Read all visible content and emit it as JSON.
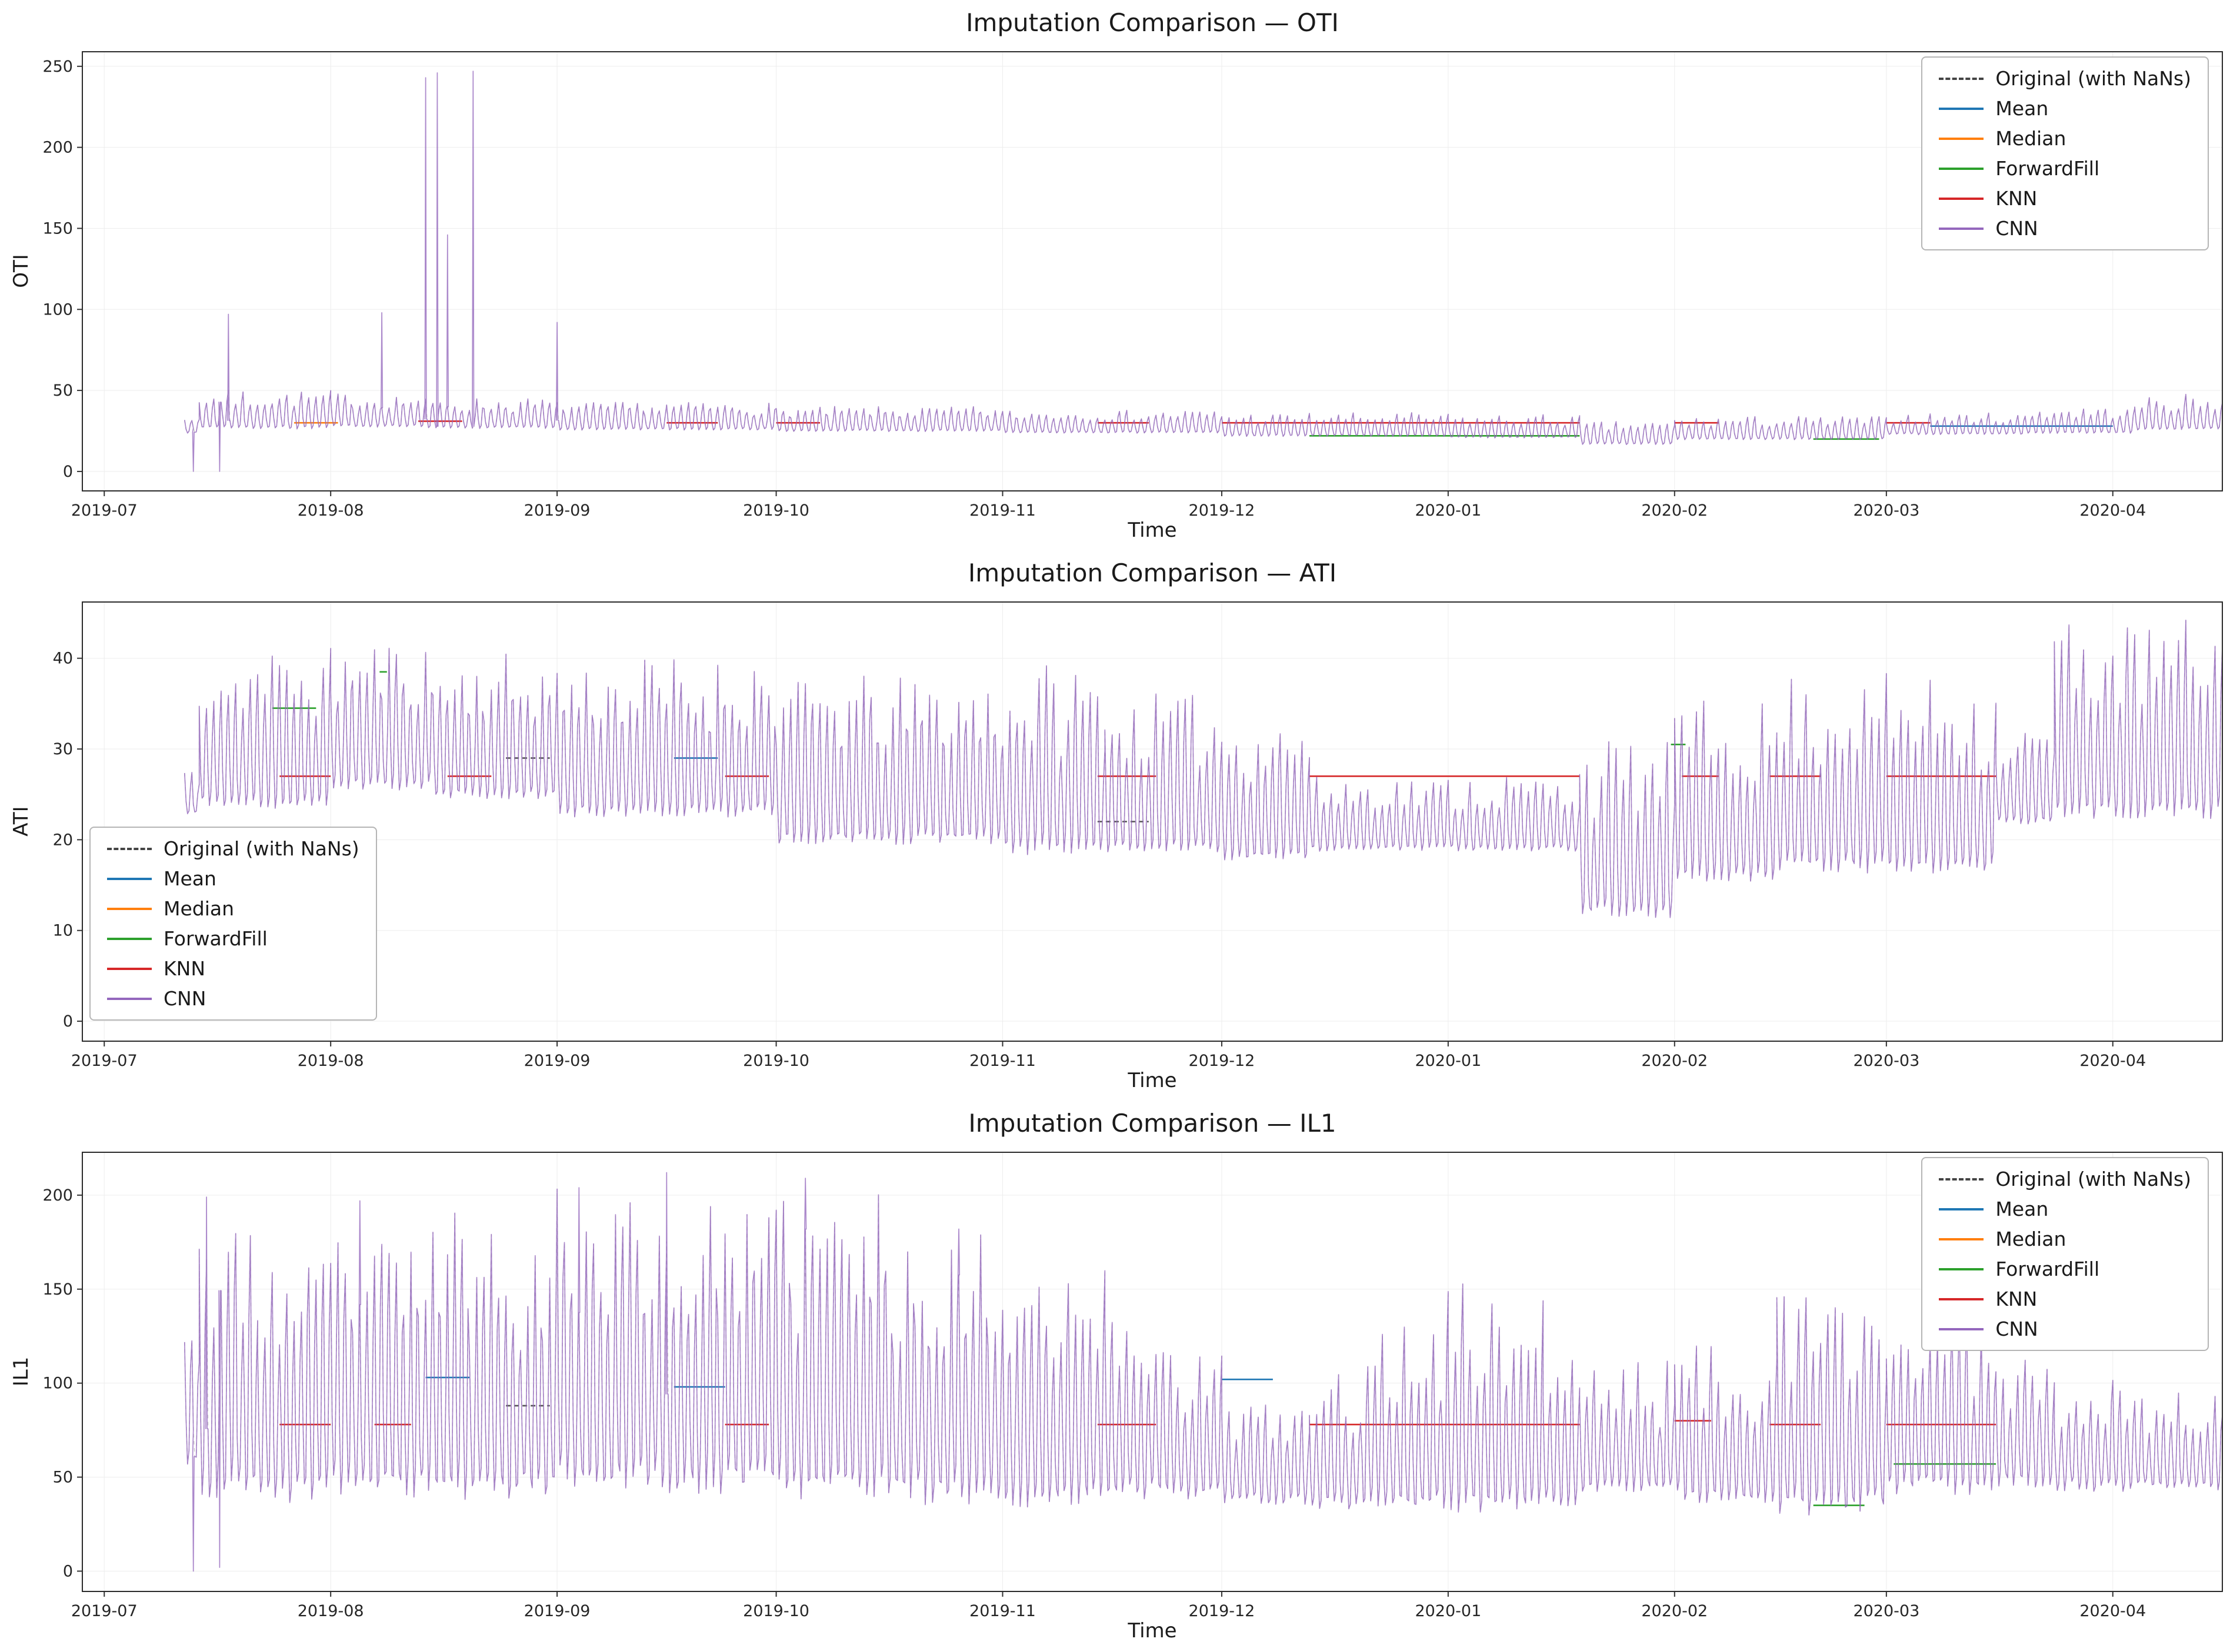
{
  "figure": {
    "background": "#ffffff",
    "x_domain_days": 293,
    "x_axis_label": "Time",
    "x_ticks": [
      {
        "label": "2019-07",
        "day": 3
      },
      {
        "label": "2019-08",
        "day": 34
      },
      {
        "label": "2019-09",
        "day": 65
      },
      {
        "label": "2019-10",
        "day": 95
      },
      {
        "label": "2019-11",
        "day": 126
      },
      {
        "label": "2019-12",
        "day": 156
      },
      {
        "label": "2020-01",
        "day": 187
      },
      {
        "label": "2020-02",
        "day": 218
      },
      {
        "label": "2020-03",
        "day": 247
      },
      {
        "label": "2020-04",
        "day": 278
      }
    ]
  },
  "legend": {
    "items": [
      {
        "key": "original",
        "label": "Original (with NaNs)",
        "color": "#444444",
        "dash": true
      },
      {
        "key": "mean",
        "label": "Mean",
        "color": "#1f77b4"
      },
      {
        "key": "median",
        "label": "Median",
        "color": "#ff7f0e"
      },
      {
        "key": "ffill",
        "label": "ForwardFill",
        "color": "#2ca02c"
      },
      {
        "key": "knn",
        "label": "KNN",
        "color": "#d62728"
      },
      {
        "key": "cnn",
        "label": "CNN",
        "color": "#9467bd"
      }
    ]
  },
  "chart_data": [
    {
      "type": "line",
      "title": "Imputation Comparison — OTI",
      "ylabel": "OTI",
      "xlabel": "Time",
      "ylim": [
        -12,
        259
      ],
      "yticks": [
        0,
        50,
        100,
        150,
        200,
        250
      ],
      "x_tick_labels": [
        "2019-07",
        "2019-08",
        "2019-09",
        "2019-10",
        "2019-11",
        "2019-12",
        "2020-01",
        "2020-02",
        "2020-03",
        "2020-04"
      ],
      "legend_loc": "upper right",
      "series_names": [
        "Original (with NaNs)",
        "Mean",
        "Median",
        "ForwardFill",
        "KNN",
        "CNN"
      ],
      "seed": 7,
      "noise": 0.06,
      "cnn_envelope": [
        [
          14,
          16,
          24,
          36
        ],
        [
          16,
          34,
          27,
          50
        ],
        [
          34,
          47,
          28,
          48
        ],
        [
          47,
          65,
          27,
          45
        ],
        [
          65,
          95,
          26,
          43
        ],
        [
          95,
          126,
          25,
          40
        ],
        [
          126,
          156,
          24,
          38
        ],
        [
          156,
          187,
          22,
          36
        ],
        [
          187,
          205,
          21,
          35
        ],
        [
          205,
          218,
          17,
          31
        ],
        [
          218,
          247,
          20,
          34
        ],
        [
          247,
          266,
          23,
          36
        ],
        [
          266,
          281,
          24,
          40
        ],
        [
          281,
          293,
          26,
          47
        ]
      ],
      "spikes_up": [
        [
          20,
          97
        ],
        [
          41,
          98
        ],
        [
          47,
          243
        ],
        [
          48.6,
          246
        ],
        [
          50,
          146
        ],
        [
          53.5,
          247
        ],
        [
          65,
          92
        ]
      ],
      "spikes_down": [
        [
          15.2,
          0
        ],
        [
          18.8,
          0
        ]
      ],
      "flat_segments": {
        "median": [
          [
            29,
            35,
            30
          ]
        ],
        "knn": [
          [
            46,
            52,
            31
          ],
          [
            80,
            87,
            30
          ],
          [
            95,
            101,
            30
          ],
          [
            139,
            146,
            30
          ],
          [
            156,
            205,
            30
          ],
          [
            218,
            224,
            30
          ],
          [
            247,
            253,
            30
          ]
        ],
        "ffill": [
          [
            168,
            205,
            22
          ],
          [
            237,
            246,
            20
          ]
        ],
        "mean": [
          [
            253,
            278,
            28
          ]
        ]
      }
    },
    {
      "type": "line",
      "title": "Imputation Comparison — ATI",
      "ylabel": "ATI",
      "xlabel": "Time",
      "ylim": [
        -2.2,
        46.2
      ],
      "yticks": [
        0,
        10,
        20,
        30,
        40
      ],
      "x_tick_labels": [
        "2019-07",
        "2019-08",
        "2019-09",
        "2019-10",
        "2019-11",
        "2019-12",
        "2020-01",
        "2020-02",
        "2020-03",
        "2020-04"
      ],
      "legend_loc": "lower left",
      "series_names": [
        "Original (with NaNs)",
        "Mean",
        "Median",
        "ForwardFill",
        "KNN",
        "CNN"
      ],
      "seed": 11,
      "noise": 0.07,
      "cnn_envelope": [
        [
          14,
          16,
          23,
          28
        ],
        [
          16,
          34,
          24,
          41
        ],
        [
          34,
          48,
          26,
          42
        ],
        [
          48,
          65,
          25,
          40
        ],
        [
          65,
          95,
          23,
          40
        ],
        [
          95,
          126,
          20,
          38
        ],
        [
          126,
          140,
          19,
          39
        ],
        [
          140,
          156,
          19,
          36
        ],
        [
          156,
          168,
          18,
          34
        ],
        [
          168,
          205,
          19,
          27
        ],
        [
          205,
          218,
          12,
          31
        ],
        [
          218,
          232,
          16,
          35
        ],
        [
          232,
          262,
          17,
          38
        ],
        [
          262,
          270,
          22,
          33
        ],
        [
          270,
          293,
          23,
          44
        ]
      ],
      "spikes_up": [],
      "spikes_down": [],
      "flat_segments": {
        "ffill": [
          [
            26,
            32,
            34.5
          ],
          [
            40.7,
            41.7,
            38.5
          ],
          [
            217.5,
            219.5,
            30.5
          ]
        ],
        "knn": [
          [
            27,
            34,
            27
          ],
          [
            50,
            56,
            27
          ],
          [
            88,
            94,
            27
          ],
          [
            139,
            147,
            27
          ],
          [
            168,
            205,
            27
          ],
          [
            219,
            224,
            27
          ],
          [
            231,
            238,
            27
          ],
          [
            247,
            262,
            27
          ]
        ],
        "mean": [
          [
            81,
            87,
            29
          ]
        ],
        "original": [
          [
            58,
            64,
            29
          ],
          [
            139,
            146,
            22
          ]
        ]
      }
    },
    {
      "type": "line",
      "title": "Imputation Comparison — IL1",
      "ylabel": "IL1",
      "xlabel": "Time",
      "ylim": [
        -10.8,
        222.8
      ],
      "yticks": [
        0,
        50,
        100,
        150,
        200
      ],
      "x_tick_labels": [
        "2019-07",
        "2019-08",
        "2019-09",
        "2019-10",
        "2019-11",
        "2019-12",
        "2020-01",
        "2020-02",
        "2020-03",
        "2020-04"
      ],
      "legend_loc": "upper right",
      "series_names": [
        "Original (with NaNs)",
        "Mean",
        "Median",
        "ForwardFill",
        "KNN",
        "CNN"
      ],
      "seed": 23,
      "noise": 0.1,
      "cnn_envelope": [
        [
          14,
          16,
          60,
          130
        ],
        [
          16,
          24,
          45,
          185
        ],
        [
          24,
          34,
          42,
          170
        ],
        [
          34,
          47,
          45,
          180
        ],
        [
          47,
          65,
          45,
          190
        ],
        [
          65,
          80,
          50,
          200
        ],
        [
          80,
          95,
          48,
          195
        ],
        [
          95,
          110,
          45,
          200
        ],
        [
          110,
          126,
          42,
          180
        ],
        [
          126,
          140,
          40,
          170
        ],
        [
          140,
          150,
          42,
          140
        ],
        [
          150,
          156,
          40,
          120
        ],
        [
          156,
          168,
          38,
          90
        ],
        [
          168,
          187,
          36,
          95,
          36,
          150
        ],
        [
          187,
          200,
          36,
          150
        ],
        [
          200,
          205,
          38,
          120
        ],
        [
          205,
          218,
          45,
          110
        ],
        [
          218,
          232,
          40,
          120
        ],
        [
          232,
          247,
          35,
          148
        ],
        [
          247,
          262,
          45,
          140
        ],
        [
          262,
          270,
          48,
          120
        ],
        [
          270,
          281,
          45,
          105
        ],
        [
          281,
          293,
          45,
          95
        ]
      ],
      "spikes_up": [
        [
          17,
          199
        ],
        [
          38,
          197
        ],
        [
          68,
          204
        ],
        [
          80,
          212
        ],
        [
          99,
          209
        ],
        [
          120,
          182
        ]
      ],
      "spikes_down": [
        [
          15.2,
          0
        ],
        [
          18.8,
          2
        ]
      ],
      "flat_segments": {
        "knn": [
          [
            27,
            34,
            78
          ],
          [
            40,
            45,
            78
          ],
          [
            88,
            94,
            78
          ],
          [
            139,
            147,
            78
          ],
          [
            168,
            205,
            78
          ],
          [
            218,
            223,
            80
          ],
          [
            231,
            238,
            78
          ],
          [
            247,
            262,
            78
          ]
        ],
        "mean": [
          [
            47,
            53,
            103
          ],
          [
            81,
            88,
            98
          ],
          [
            156,
            163,
            102
          ]
        ],
        "ffill": [
          [
            237,
            244,
            35
          ],
          [
            248,
            262,
            57
          ]
        ],
        "original": [
          [
            58,
            64,
            88
          ]
        ]
      }
    }
  ]
}
